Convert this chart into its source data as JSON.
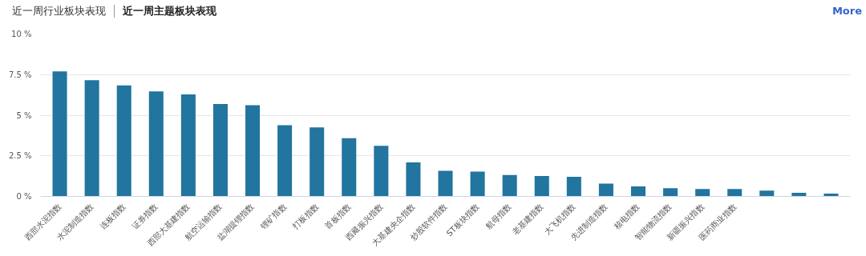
{
  "chart_data": {
    "type": "bar",
    "title": "近一周主题板块表现",
    "annotations": [
      "近一周行业板块表现",
      "More"
    ],
    "categories": [
      "西部水泥指数",
      "水泥制造指数",
      "连板指数",
      "证券指数",
      "西部大基建指数",
      "航空运输指数",
      "盐湖提锂指数",
      "锂矿指数",
      "打板指数",
      "首板指数",
      "西藏振兴指数",
      "大基建央企指数",
      "炒股软件指数",
      "ST板块指数",
      "航母指数",
      "老基建指数",
      "大飞机指数",
      "先进制造指数",
      "核电指数",
      "智能物流指数",
      "新疆振兴指数",
      "医药商业指数",
      null,
      null,
      null
    ],
    "values": [
      7.7,
      7.15,
      6.84,
      6.47,
      6.28,
      5.69,
      5.61,
      4.39,
      4.25,
      3.58,
      3.11,
      2.09,
      1.58,
      1.53,
      1.32,
      1.26,
      1.21,
      0.79,
      0.61,
      0.51,
      0.45,
      0.45,
      0.36,
      0.22,
      0.17
    ],
    "color": "#21759f",
    "ylim": [
      0,
      10
    ],
    "yticks": [
      {
        "value": 0,
        "label": "0 %"
      },
      {
        "value": 2.5,
        "label": "2.5 %"
      },
      {
        "value": 5,
        "label": "5 %"
      },
      {
        "value": 7.5,
        "label": "7.5 %"
      },
      {
        "value": 10,
        "label": "10 %"
      }
    ],
    "grid": "y"
  }
}
